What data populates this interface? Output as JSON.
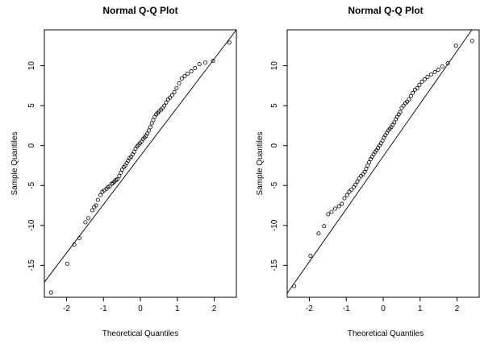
{
  "chart_data": [
    {
      "type": "scatter",
      "title": "Normal Q-Q Plot",
      "xlabel": "Theoretical Quantiles",
      "ylabel": "Sample Quantiles",
      "xlim": [
        -2.6,
        2.6
      ],
      "ylim": [
        -19,
        14.5
      ],
      "xticks": [
        -2,
        -1,
        0,
        1,
        2
      ],
      "yticks": [
        -15,
        -10,
        -5,
        0,
        5,
        10
      ],
      "reference_line": {
        "x": [
          -2.6,
          2.6
        ],
        "y": [
          -17.1,
          14.5
        ]
      },
      "x": [
        -2.42,
        -1.98,
        -1.79,
        -1.65,
        -1.49,
        -1.41,
        -1.3,
        -1.25,
        -1.2,
        -1.15,
        -1.08,
        -1.03,
        -0.98,
        -0.92,
        -0.88,
        -0.83,
        -0.78,
        -0.74,
        -0.7,
        -0.66,
        -0.62,
        -0.57,
        -0.53,
        -0.49,
        -0.45,
        -0.41,
        -0.37,
        -0.33,
        -0.29,
        -0.25,
        -0.21,
        -0.17,
        -0.13,
        -0.09,
        -0.05,
        -0.01,
        0.03,
        0.07,
        0.11,
        0.15,
        0.19,
        0.23,
        0.27,
        0.31,
        0.35,
        0.39,
        0.43,
        0.47,
        0.51,
        0.56,
        0.6,
        0.65,
        0.7,
        0.75,
        0.8,
        0.86,
        0.92,
        0.98,
        1.05,
        1.12,
        1.2,
        1.28,
        1.38,
        1.48,
        1.6,
        1.76,
        1.97,
        2.41
      ],
      "y": [
        -18.4,
        -14.8,
        -12.4,
        -11.6,
        -9.6,
        -9.1,
        -8.1,
        -7.7,
        -7.5,
        -6.8,
        -6.2,
        -5.8,
        -5.6,
        -5.4,
        -5.2,
        -5.1,
        -4.8,
        -4.7,
        -4.5,
        -4.3,
        -4.2,
        -3.8,
        -3.4,
        -3.0,
        -2.7,
        -2.5,
        -2.2,
        -1.9,
        -1.6,
        -1.4,
        -1.1,
        -0.8,
        -0.4,
        -0.1,
        0.1,
        0.3,
        0.5,
        0.8,
        1.0,
        1.2,
        1.5,
        1.9,
        2.3,
        2.8,
        3.2,
        3.6,
        3.9,
        4.1,
        4.3,
        4.5,
        4.7,
        5.0,
        5.4,
        5.8,
        6.0,
        6.3,
        6.7,
        7.2,
        7.8,
        8.4,
        8.7,
        9.0,
        9.3,
        9.7,
        10.2,
        10.4,
        10.6,
        12.9
      ]
    },
    {
      "type": "scatter",
      "title": "Normal Q-Q Plot",
      "xlabel": "Theoretical Quantiles",
      "ylabel": "Sample Quantiles",
      "xlim": [
        -2.6,
        2.6
      ],
      "ylim": [
        -19,
        14.5
      ],
      "xticks": [
        -2,
        -1,
        0,
        1,
        2
      ],
      "yticks": [
        -15,
        -10,
        -5,
        0,
        5,
        10
      ],
      "reference_line": {
        "x": [
          -2.6,
          2.6
        ],
        "y": [
          -18.5,
          15.8
        ]
      },
      "x": [
        -2.41,
        -1.97,
        -1.75,
        -1.6,
        -1.49,
        -1.4,
        -1.3,
        -1.2,
        -1.12,
        -1.05,
        -0.98,
        -0.92,
        -0.86,
        -0.8,
        -0.75,
        -0.7,
        -0.65,
        -0.6,
        -0.55,
        -0.5,
        -0.46,
        -0.42,
        -0.38,
        -0.34,
        -0.3,
        -0.26,
        -0.22,
        -0.18,
        -0.14,
        -0.1,
        -0.06,
        -0.02,
        0.02,
        0.06,
        0.1,
        0.14,
        0.18,
        0.22,
        0.26,
        0.3,
        0.34,
        0.38,
        0.42,
        0.46,
        0.5,
        0.55,
        0.6,
        0.65,
        0.7,
        0.75,
        0.8,
        0.86,
        0.92,
        0.98,
        1.05,
        1.12,
        1.2,
        1.3,
        1.4,
        1.49,
        1.6,
        1.75,
        1.97,
        2.41
      ],
      "y": [
        -17.6,
        -13.8,
        -11.0,
        -10.1,
        -8.6,
        -8.3,
        -7.9,
        -7.6,
        -7.3,
        -6.6,
        -6.2,
        -5.8,
        -5.5,
        -5.2,
        -4.9,
        -4.5,
        -4.1,
        -3.8,
        -3.6,
        -3.3,
        -2.9,
        -2.5,
        -2.1,
        -1.7,
        -1.4,
        -1.1,
        -0.8,
        -0.6,
        -0.3,
        0.0,
        0.3,
        0.6,
        1.0,
        1.3,
        1.6,
        1.9,
        2.1,
        2.3,
        2.6,
        2.9,
        3.3,
        3.6,
        3.9,
        4.2,
        4.7,
        5.0,
        5.3,
        5.5,
        5.8,
        6.2,
        6.6,
        7.0,
        7.2,
        7.6,
        8.0,
        8.3,
        8.6,
        8.9,
        9.2,
        9.5,
        9.9,
        10.3,
        12.5,
        13.1
      ]
    }
  ]
}
